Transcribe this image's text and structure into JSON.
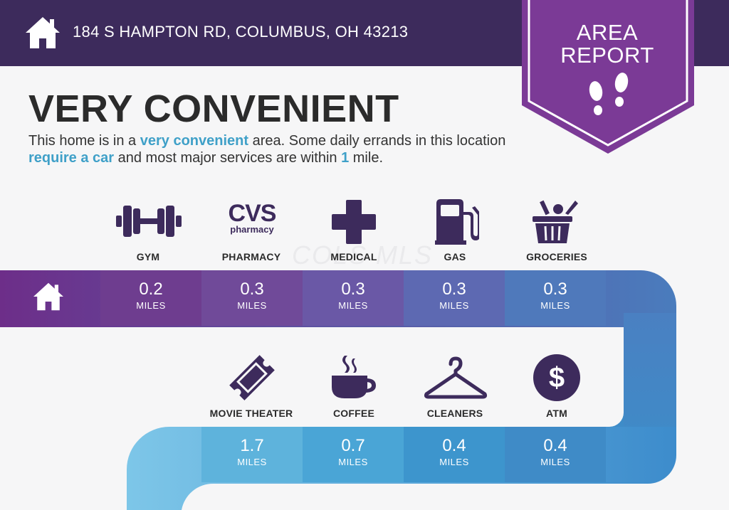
{
  "header": {
    "address": "184 S HAMPTON RD, COLUMBUS, OH 43213"
  },
  "badge": {
    "line1": "AREA",
    "line2": "REPORT"
  },
  "title": "VERY CONVENIENT",
  "description": {
    "part1": "This home is in a ",
    "highlight1": "very convenient",
    "part2": " area. Some daily errands in this location ",
    "highlight2": "require a car",
    "part3": " and most major services are within ",
    "highlight3": "1",
    "part4": " mile."
  },
  "watermark": "COLS MLS",
  "row1": [
    {
      "label": "GYM",
      "distance": "0.2",
      "unit": "MILES",
      "icon": "dumbbell-icon",
      "color": "#6e3d8f"
    },
    {
      "label": "PHARMACY",
      "distance": "0.3",
      "unit": "MILES",
      "icon": "cvs-pharmacy-logo",
      "logo_line1": "CVS",
      "logo_line2": "pharmacy",
      "color": "#704a99"
    },
    {
      "label": "MEDICAL",
      "distance": "0.3",
      "unit": "MILES",
      "icon": "medical-cross-icon",
      "color": "#6a58a6"
    },
    {
      "label": "GAS",
      "distance": "0.3",
      "unit": "MILES",
      "icon": "gas-pump-icon",
      "color": "#5d69b2"
    },
    {
      "label": "GROCERIES",
      "distance": "0.3",
      "unit": "MILES",
      "icon": "grocery-basket-icon",
      "color": "#4f79bb"
    }
  ],
  "row2": [
    {
      "label": "MOVIE THEATER",
      "distance": "1.7",
      "unit": "MILES",
      "icon": "ticket-icon",
      "color": "#5eb3dc"
    },
    {
      "label": "COFFEE",
      "distance": "0.7",
      "unit": "MILES",
      "icon": "coffee-cup-icon",
      "color": "#4aa5d6"
    },
    {
      "label": "CLEANERS",
      "distance": "0.4",
      "unit": "MILES",
      "icon": "hanger-icon",
      "color": "#3d95cd"
    },
    {
      "label": "ATM",
      "distance": "0.4",
      "unit": "MILES",
      "icon": "dollar-icon",
      "color": "#3f8bc7"
    }
  ],
  "colors": {
    "header": "#3d2b5c",
    "badge": "#7b3a96",
    "highlight": "#3fa0c8",
    "icon": "#3d2b5c"
  }
}
